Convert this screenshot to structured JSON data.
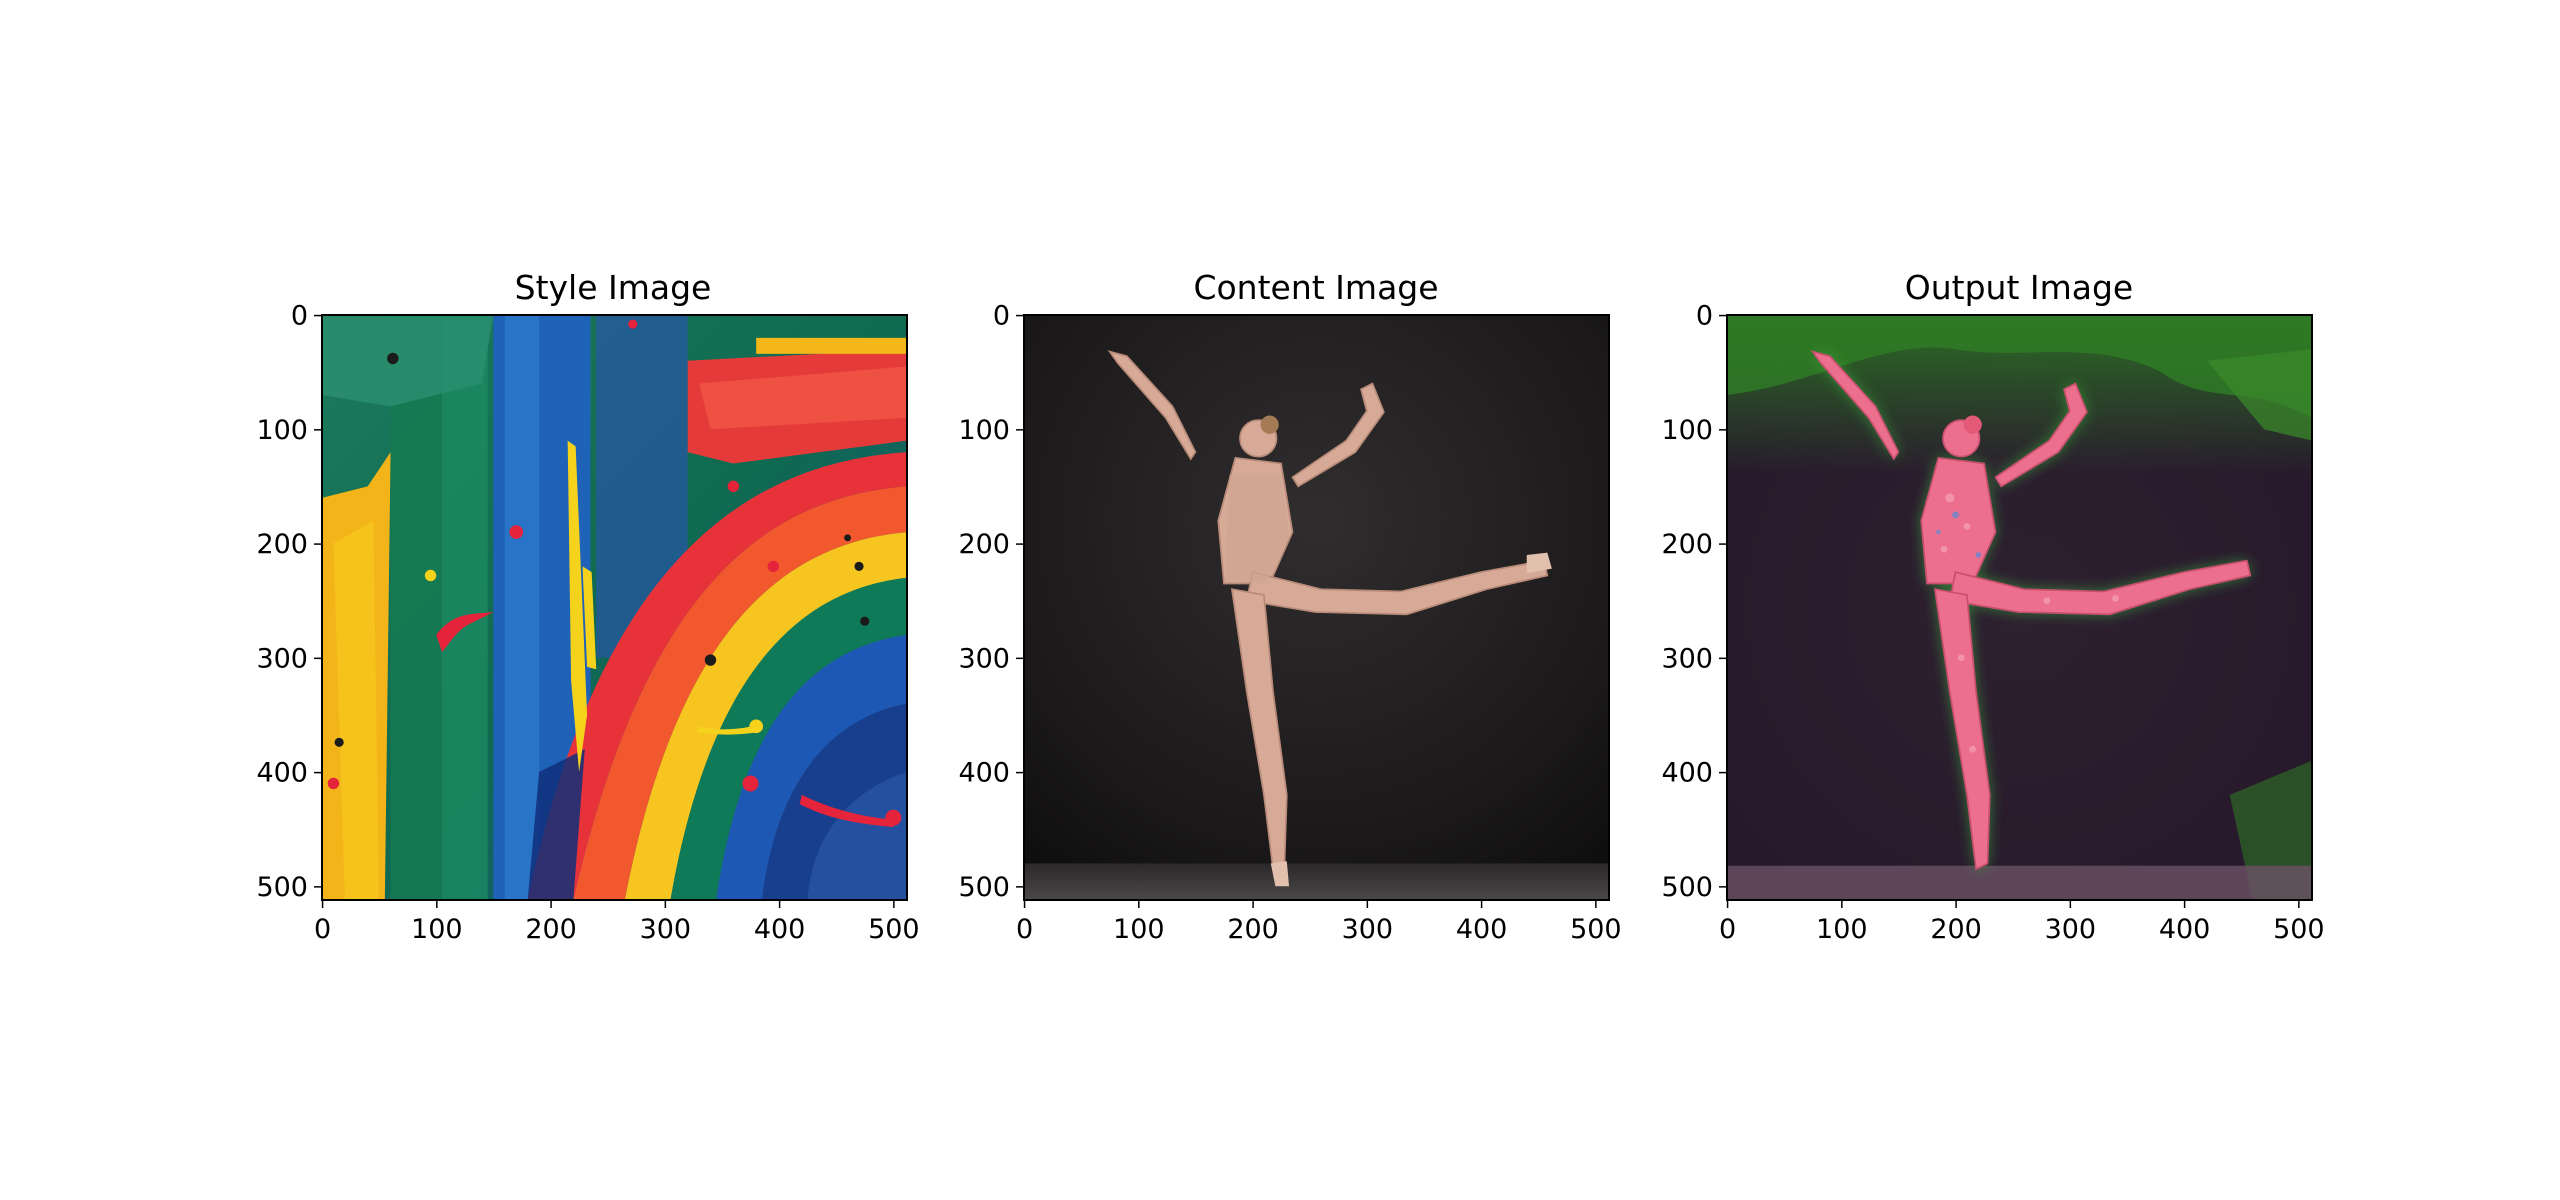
{
  "figure": {
    "panels": [
      {
        "title": "Style Image",
        "image_description": "abstract painting with vivid rainbow-colored brushstrokes: yellow, green, blue, red and orange paint with splatters"
      },
      {
        "title": "Content Image",
        "image_description": "photo of a ballet dancer in a nude leotard balancing en pointe in an arabesque pose against a dark gray background"
      },
      {
        "title": "Output Image",
        "image_description": "stylized version of the ballerina photo rendered in pink, red and green painterly textures on a dark purple background"
      }
    ],
    "x_ticks": [
      "0",
      "100",
      "200",
      "300",
      "400",
      "500"
    ],
    "y_ticks": [
      "0",
      "100",
      "200",
      "300",
      "400",
      "500"
    ],
    "axis_max": 512,
    "colors": {
      "background": "#ffffff",
      "axis": "#000000"
    }
  }
}
